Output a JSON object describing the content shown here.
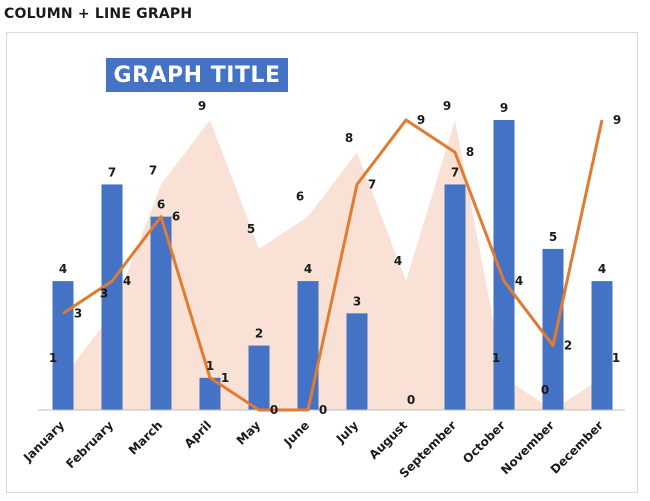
{
  "page": {
    "heading": "COLUMN + LINE GRAPH"
  },
  "chart_data": {
    "type": "combo",
    "title": "GRAPH TITLE",
    "categories": [
      "January",
      "February",
      "March",
      "April",
      "May",
      "June",
      "July",
      "August",
      "September",
      "October",
      "November",
      "December"
    ],
    "series": [
      {
        "kind": "area",
        "values": [
          1,
          3,
          7,
          9,
          5,
          6,
          8,
          4,
          9,
          1,
          0,
          1
        ],
        "color": "#f9e2d5"
      },
      {
        "kind": "column",
        "values": [
          4,
          7,
          6,
          1,
          2,
          4,
          3,
          0,
          7,
          9,
          5,
          4
        ],
        "color": "#4472c4"
      },
      {
        "kind": "line",
        "values": [
          3,
          4,
          6,
          1,
          0,
          0,
          7,
          9,
          8,
          4,
          2,
          9
        ],
        "color": "#e07b32"
      }
    ],
    "ylim": [
      0,
      9
    ],
    "grid": false,
    "legend": "none"
  }
}
